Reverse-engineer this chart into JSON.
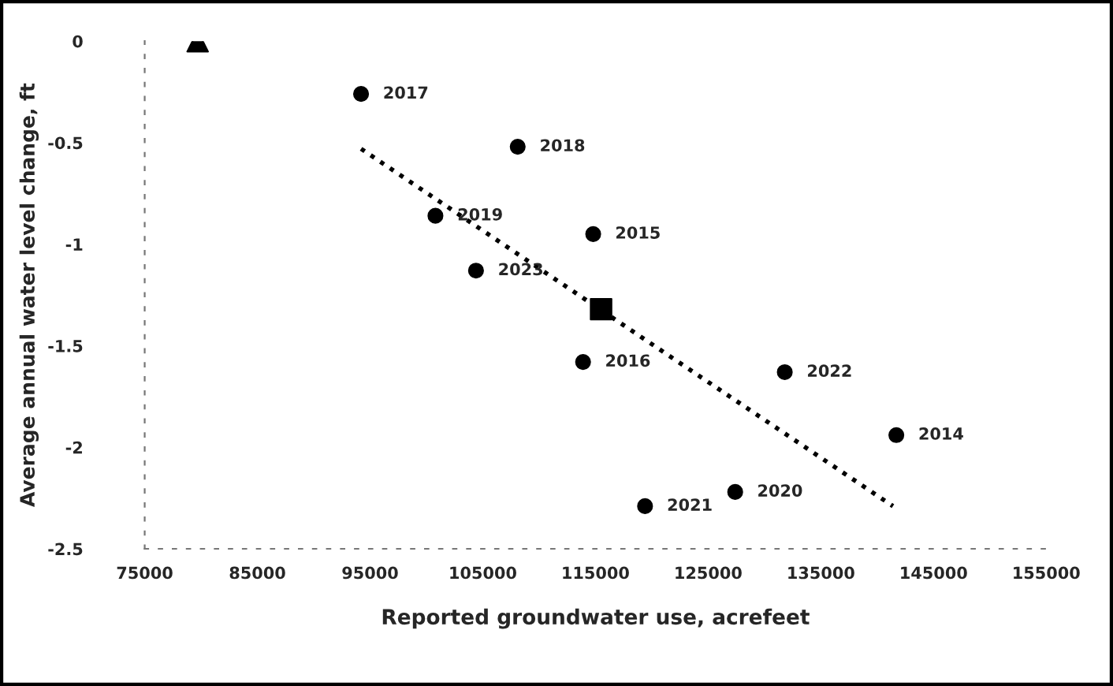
{
  "chart_data": {
    "type": "scatter",
    "xlabel": "Reported groundwater use, acrefeet",
    "ylabel": "Average annual water level change, ft",
    "xlim": [
      75000,
      155000
    ],
    "xticks": [
      75000,
      85000,
      95000,
      105000,
      115000,
      125000,
      135000,
      145000,
      155000
    ],
    "ylim": [
      -2.5,
      0
    ],
    "yticks": [
      0,
      -0.5,
      -1,
      -1.5,
      -2,
      -2.5
    ],
    "grid": false,
    "legend": false,
    "series": [
      {
        "marker": "circle",
        "color": "#000000",
        "x": [
          94200,
          108100,
          100800,
          114800,
          104400,
          113900,
          131800,
          141700,
          127400,
          119400
        ],
        "values": [
          -0.26,
          -0.52,
          -0.86,
          -0.95,
          -1.13,
          -1.58,
          -1.63,
          -1.94,
          -2.22,
          -2.29
        ]
      },
      {
        "marker": "triangle",
        "color": "#000000",
        "x": [
          79700
        ],
        "values": [
          0
        ]
      },
      {
        "marker": "square",
        "color": "#000000",
        "x": [
          115500
        ],
        "values": [
          -1.32
        ]
      },
      {
        "type": "line",
        "line_style": "dotted",
        "marker": "none",
        "color": "#000000",
        "x": [
          94200,
          141400
        ],
        "values": [
          -0.53,
          -2.29
        ]
      }
    ],
    "annotations": [
      {
        "text": "2017",
        "x": 94200,
        "y": -0.26
      },
      {
        "text": "2018",
        "x": 108100,
        "y": -0.52
      },
      {
        "text": "2019",
        "x": 100800,
        "y": -0.86
      },
      {
        "text": "2015",
        "x": 114800,
        "y": -0.95
      },
      {
        "text": "2023",
        "x": 104400,
        "y": -1.13
      },
      {
        "text": "2016",
        "x": 113900,
        "y": -1.58
      },
      {
        "text": "2022",
        "x": 131800,
        "y": -1.63
      },
      {
        "text": "2014",
        "x": 141700,
        "y": -1.94
      },
      {
        "text": "2020",
        "x": 127400,
        "y": -2.22
      },
      {
        "text": "2021",
        "x": 119400,
        "y": -2.29
      }
    ]
  }
}
